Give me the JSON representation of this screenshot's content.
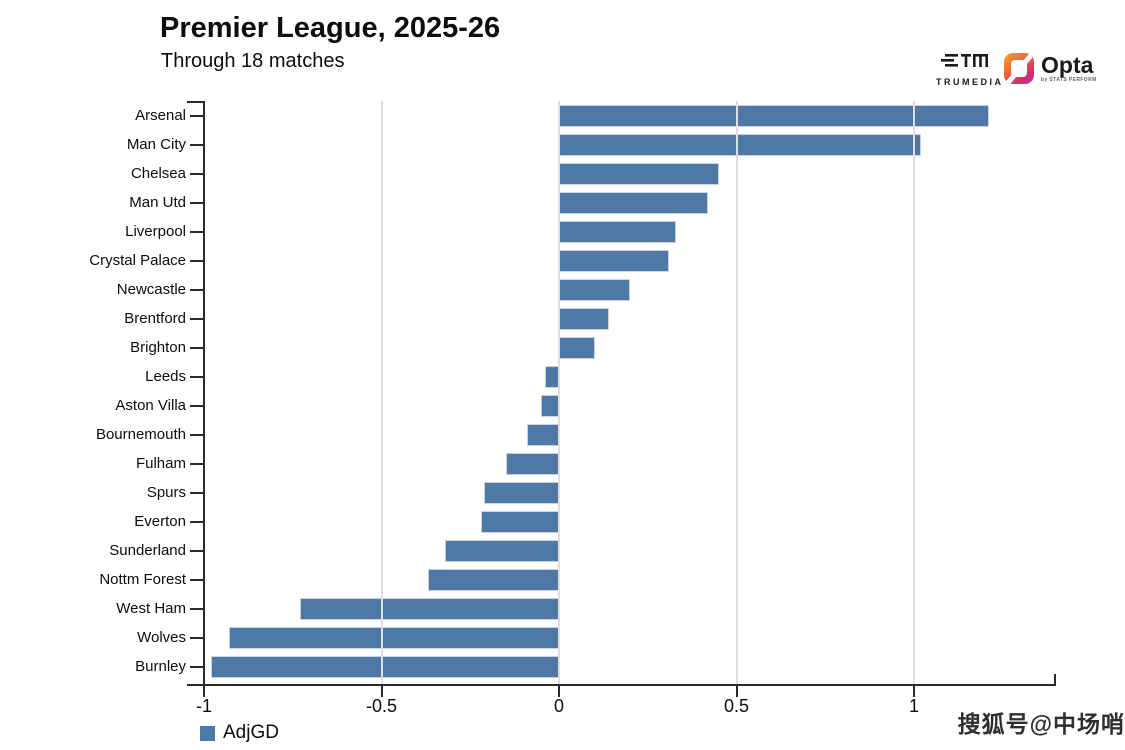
{
  "branding": {
    "trumedia_label": "TRUMEDIA",
    "opta_label": "Opta",
    "opta_sub_label": "by STATS PERFORM"
  },
  "watermark": "搜狐号@中场哨",
  "chart_data": {
    "type": "bar",
    "orientation": "horizontal",
    "title": "Premier League, 2025-26",
    "subtitle": "Through 18 matches",
    "series_name": "AdjGD",
    "categories": [
      "Arsenal",
      "Man City",
      "Chelsea",
      "Man Utd",
      "Liverpool",
      "Crystal Palace",
      "Newcastle",
      "Brentford",
      "Brighton",
      "Leeds",
      "Aston Villa",
      "Bournemouth",
      "Fulham",
      "Spurs",
      "Everton",
      "Sunderland",
      "Nottm Forest",
      "West Ham",
      "Wolves",
      "Burnley"
    ],
    "values": [
      1.21,
      1.02,
      0.45,
      0.42,
      0.33,
      0.31,
      0.2,
      0.14,
      0.1,
      -0.04,
      -0.05,
      -0.09,
      -0.15,
      -0.21,
      -0.22,
      -0.32,
      -0.37,
      -0.73,
      -0.93,
      -0.98
    ],
    "xlim": [
      -1,
      1.4
    ],
    "xticks": [
      -1,
      -0.5,
      0,
      0.5,
      1
    ],
    "xtick_labels": [
      "-1",
      "-0.5",
      "0",
      "0.5",
      "1"
    ],
    "grid": true,
    "legend_position": "bottom-left",
    "bar_color": "#4e79a7",
    "bar_border_color": "#c9d3e2",
    "gridline_color": "#dfdfe3",
    "axis_color": "#2a2a2a",
    "text_color": "#0d0d0d"
  }
}
